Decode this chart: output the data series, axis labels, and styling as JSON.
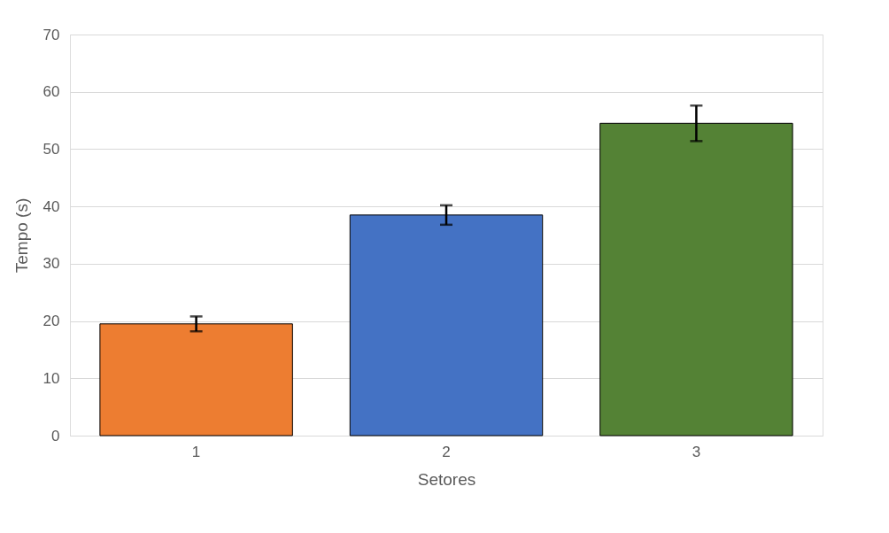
{
  "chart_data": {
    "type": "bar",
    "xlabel": "Setores",
    "ylabel": "Tempo (s)",
    "categories": [
      "1",
      "2",
      "3"
    ],
    "values": [
      19.5,
      38.5,
      54.5
    ],
    "colors": [
      "#ed7d31",
      "#4472c4",
      "#548235"
    ],
    "errors": [
      1.3,
      1.7,
      3.1
    ],
    "ylim": [
      0,
      70
    ],
    "yticks": [
      0,
      10,
      20,
      30,
      40,
      50,
      60,
      70
    ],
    "grid": "y"
  }
}
